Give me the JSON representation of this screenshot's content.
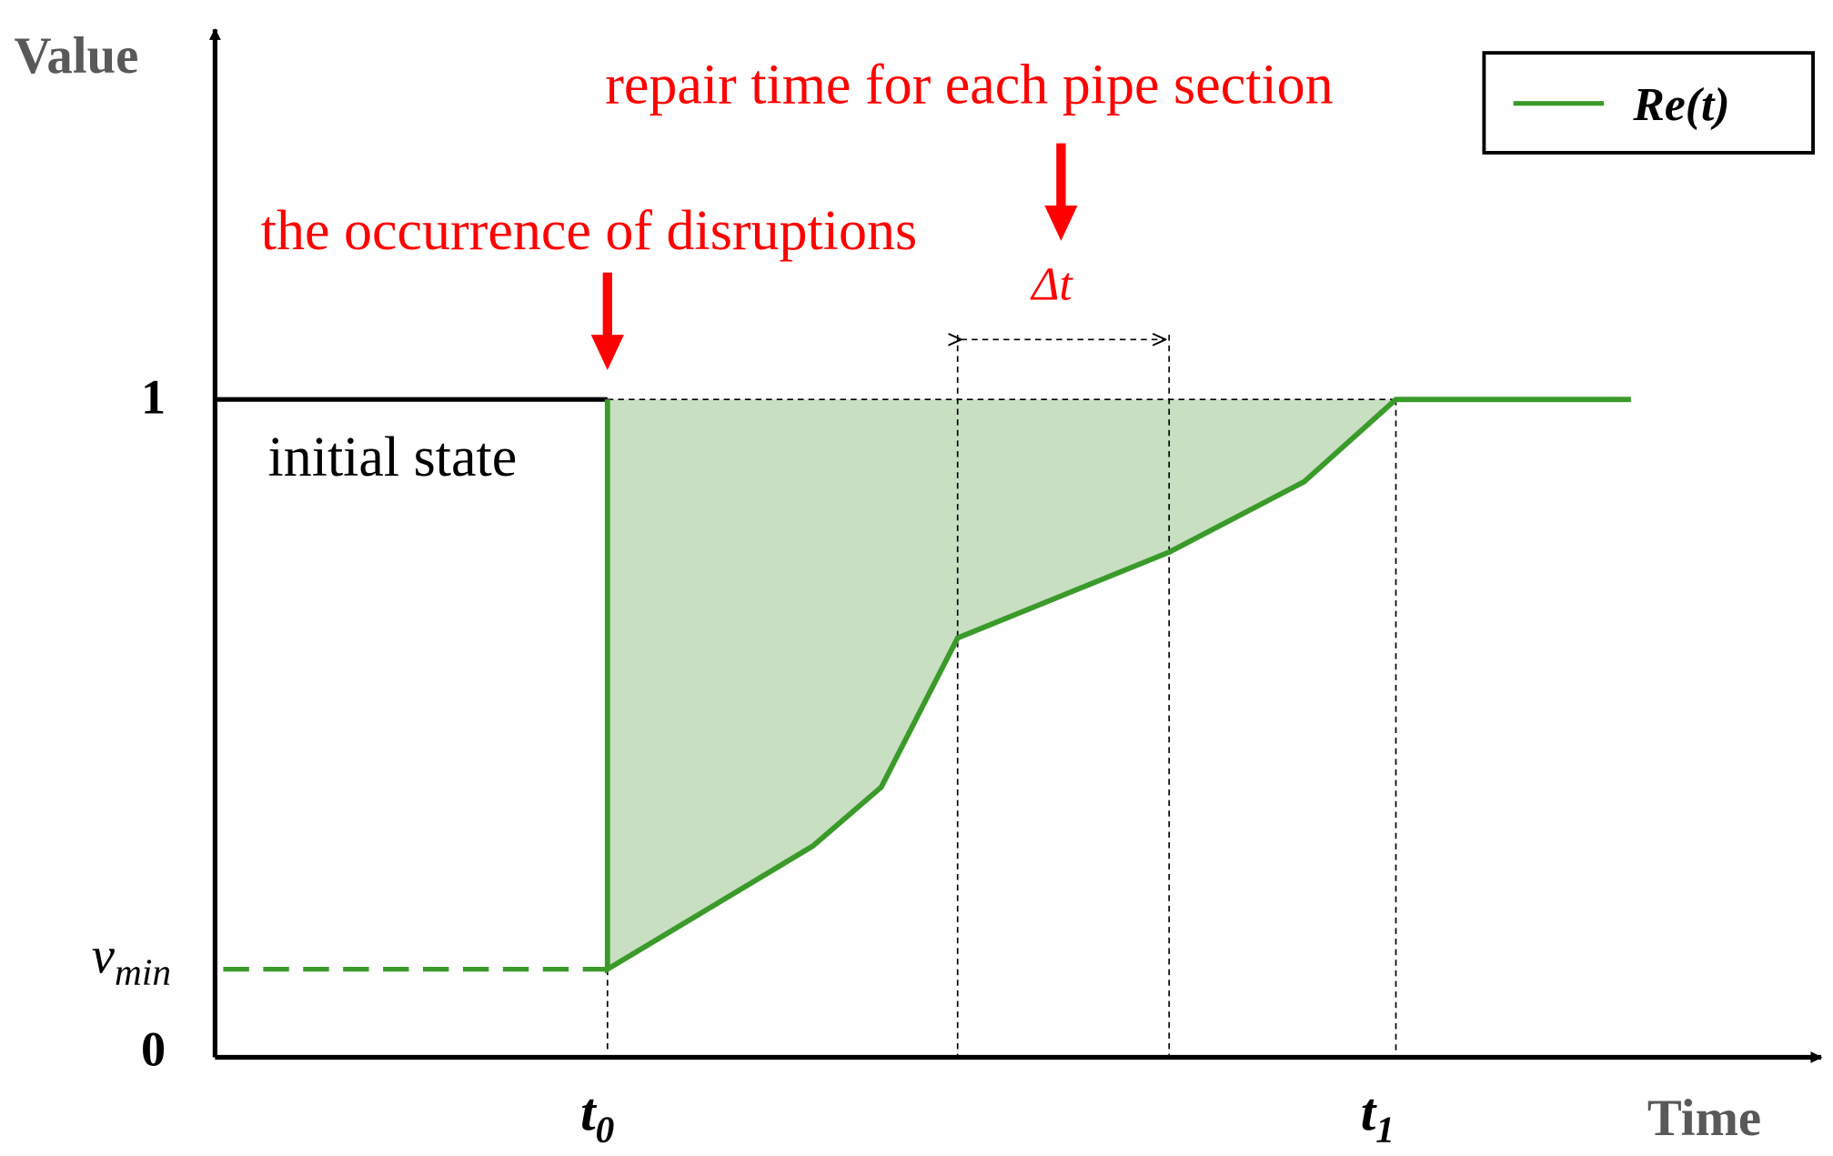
{
  "axes": {
    "y_label": "Value",
    "x_label": "Time",
    "y_top": "1",
    "y_zero": "0",
    "v_min": {
      "base": "v",
      "sub": "min"
    },
    "t0": {
      "base": "t",
      "sub": "0"
    },
    "t1": {
      "base": "t",
      "sub": "1"
    }
  },
  "annotations": {
    "initial_state": "initial state",
    "disruption": "the occurrence of disruptions",
    "repair": "repair time for each pipe section",
    "delta_t": "Δt"
  },
  "legend": {
    "label": "Re(t)"
  }
}
